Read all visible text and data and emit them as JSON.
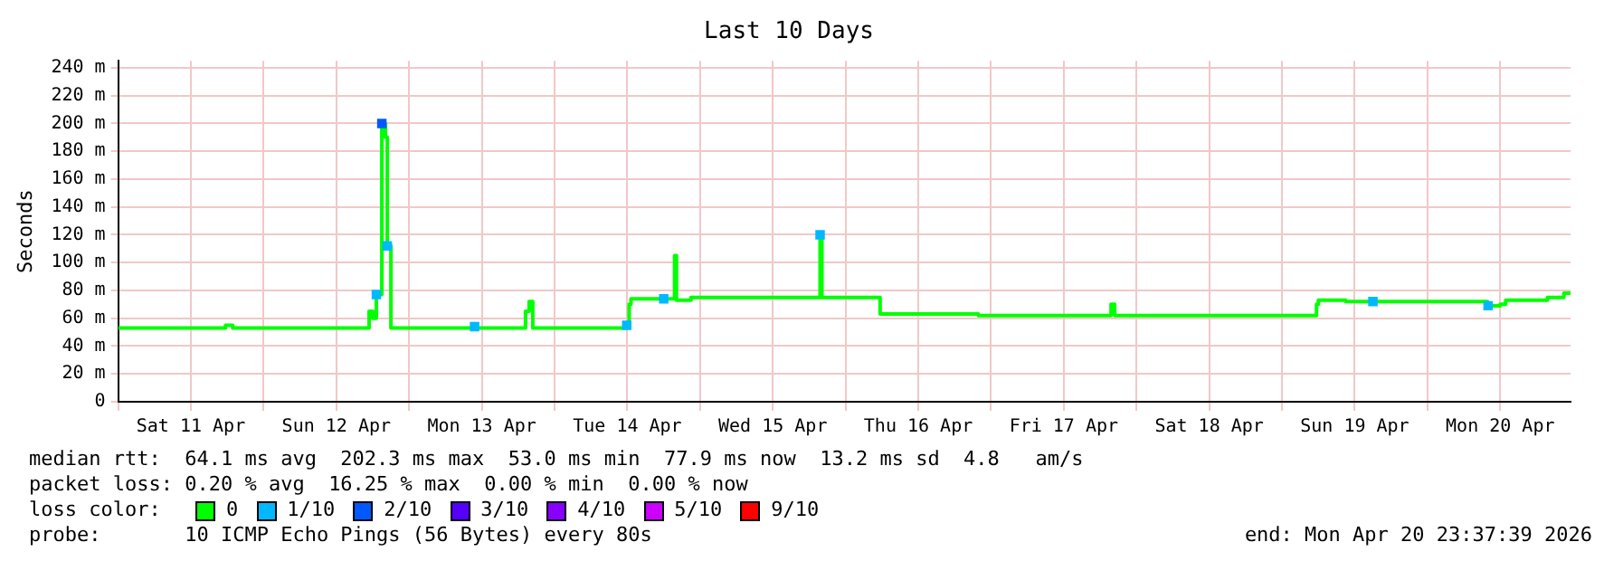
{
  "chart_data": {
    "type": "step",
    "title": "Last 10 Days",
    "ylabel": "Seconds",
    "legend_title": "loss color:",
    "xlim": [
      "2026-04-11T00:00",
      "2026-04-20T23:36"
    ],
    "xticks": [
      {
        "value": "2026-04-11T00:00",
        "label": null
      },
      {
        "value": "2026-04-11T12:00",
        "label": "Sat 11 Apr"
      },
      {
        "value": "2026-04-12T00:00",
        "label": null
      },
      {
        "value": "2026-04-12T12:00",
        "label": "Sun 12 Apr"
      },
      {
        "value": "2026-04-13T00:00",
        "label": null
      },
      {
        "value": "2026-04-13T12:00",
        "label": "Mon 13 Apr"
      },
      {
        "value": "2026-04-14T00:00",
        "label": null
      },
      {
        "value": "2026-04-14T12:00",
        "label": "Tue 14 Apr"
      },
      {
        "value": "2026-04-15T00:00",
        "label": null
      },
      {
        "value": "2026-04-15T12:00",
        "label": "Wed 15 Apr"
      },
      {
        "value": "2026-04-16T00:00",
        "label": null
      },
      {
        "value": "2026-04-16T12:00",
        "label": "Thu 16 Apr"
      },
      {
        "value": "2026-04-17T00:00",
        "label": null
      },
      {
        "value": "2026-04-17T12:00",
        "label": "Fri 17 Apr"
      },
      {
        "value": "2026-04-18T00:00",
        "label": null
      },
      {
        "value": "2026-04-18T12:00",
        "label": "Sat 18 Apr"
      },
      {
        "value": "2026-04-19T00:00",
        "label": null
      },
      {
        "value": "2026-04-19T12:00",
        "label": "Sun 19 Apr"
      },
      {
        "value": "2026-04-20T00:00",
        "label": null
      },
      {
        "value": "2026-04-20T12:00",
        "label": "Mon 20 Apr"
      }
    ],
    "ylim": [
      0,
      245
    ],
    "yticks": [
      0,
      {
        "value": 20,
        "label": "20 m"
      },
      {
        "value": 40,
        "label": "40 m"
      },
      {
        "value": 60,
        "label": "60 m"
      },
      {
        "value": 80,
        "label": "80 m"
      },
      {
        "value": 100,
        "label": "100 m"
      },
      {
        "value": 120,
        "label": "120 m"
      },
      {
        "value": 140,
        "label": "140 m"
      },
      {
        "value": 160,
        "label": "160 m"
      },
      {
        "value": 180,
        "label": "180 m"
      },
      {
        "value": 200,
        "label": "200 m"
      },
      {
        "value": 220,
        "label": "220 m"
      },
      {
        "value": 240,
        "label": "240 m"
      }
    ],
    "grid": true,
    "legend": "bottom",
    "series": [
      {
        "name": "0",
        "color": "#00ff00",
        "x": [
          "2026-04-11T00:00",
          "2026-04-11T17:42",
          "2026-04-11T18:54",
          "2026-04-12T17:24",
          "2026-04-12T18:00",
          "2026-04-12T18:36",
          "2026-04-12T19:30",
          "2026-04-12T20:06",
          "2026-04-12T20:24",
          "2026-04-12T21:00",
          "2026-04-13T19:12",
          "2026-04-13T19:48",
          "2026-04-13T20:24",
          "2026-04-14T12:00",
          "2026-04-14T12:18",
          "2026-04-14T12:36",
          "2026-04-14T19:48",
          "2026-04-14T20:06",
          "2026-04-14T22:30",
          "2026-04-15T19:48",
          "2026-04-15T20:06",
          "2026-04-16T05:42",
          "2026-04-16T21:54",
          "2026-04-17T19:48",
          "2026-04-17T20:24",
          "2026-04-19T05:42",
          "2026-04-19T06:00",
          "2026-04-19T10:30",
          "2026-04-20T09:54",
          "2026-04-20T12:00",
          "2026-04-20T12:54",
          "2026-04-20T19:48",
          "2026-04-20T22:30",
          "2026-04-20T23:36"
        ],
        "values": [
          53,
          55,
          53,
          65,
          60,
          77,
          200,
          190,
          112,
          53,
          65,
          72,
          53,
          55,
          70,
          74,
          105,
          73,
          75,
          120,
          75,
          63,
          62,
          70,
          62,
          70,
          73,
          72,
          69,
          70,
          73,
          75,
          78,
          78
        ]
      },
      {
        "name": "1/10",
        "color": "#00b8ff",
        "type": "scatter",
        "x": [
          "2026-04-12T18:36",
          "2026-04-12T20:24",
          "2026-04-13T10:48",
          "2026-04-14T11:54",
          "2026-04-14T18:00",
          "2026-04-15T19:48",
          "2026-04-19T15:00",
          "2026-04-20T10:00"
        ],
        "values": [
          77,
          112,
          54,
          55,
          74,
          120,
          72,
          69
        ]
      },
      {
        "name": "2/10",
        "color": "#0059ff",
        "type": "scatter",
        "x": [
          "2026-04-12T19:30"
        ],
        "values": [
          200
        ]
      },
      {
        "name": "3/10",
        "color": "#5500ff",
        "type": "scatter"
      },
      {
        "name": "4/10",
        "color": "#8800ff",
        "type": "scatter"
      },
      {
        "name": "5/10",
        "color": "#cc00ff",
        "type": "scatter"
      },
      {
        "name": "9/10",
        "color": "#ff0000",
        "type": "scatter"
      }
    ],
    "annotations": [
      "median rtt:  64.1 ms avg  202.3 ms max  53.0 ms min  77.9 ms now  13.2 ms sd  4.8   am/s",
      "packet loss: 0.20 % avg  16.25 % max  0.00 % min  0.00 % now",
      "probe:       10 ICMP Echo Pings (56 Bytes) every 80s",
      "end: Mon Apr 20 23:37:39 2026"
    ]
  }
}
